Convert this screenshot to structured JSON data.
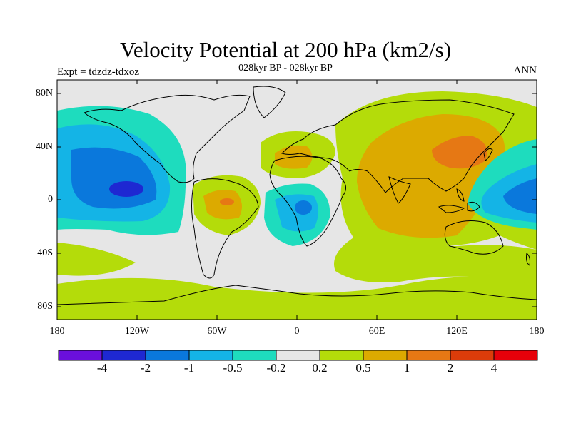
{
  "title": "Velocity Potential at 200 hPa (km2/s)",
  "subtitle": "028kyr BP - 028kyr BP",
  "left_label": "Expt = tdzdz-tdxoz",
  "right_label": "ANN",
  "lat_labels": [
    "80N",
    "40N",
    "0",
    "40S",
    "80S"
  ],
  "lon_labels": [
    "180",
    "120W",
    "60W",
    "0",
    "60E",
    "120E",
    "180"
  ],
  "colorbar": {
    "labels": [
      "-4",
      "-2",
      "-1",
      "-0.5",
      "-0.2",
      "0.2",
      "0.5",
      "1",
      "2",
      "4"
    ],
    "colors": [
      "#6a0fdc",
      "#1e28d2",
      "#0a78dc",
      "#14b4e6",
      "#1edcbe",
      "#e6e6e6",
      "#b4dc0a",
      "#dcaa00",
      "#e67814",
      "#dc3c0a",
      "#e6000a"
    ]
  }
}
